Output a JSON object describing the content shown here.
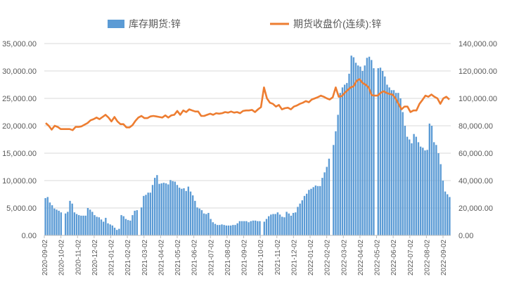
{
  "chart_data": {
    "type": "bar+line",
    "legend_position": "top",
    "grid": true,
    "x_tick_labels": [
      "2020-09-02",
      "2020-10-02",
      "2020-11-02",
      "2020-12-02",
      "2021-01-02",
      "2021-02-02",
      "2021-03-02",
      "2021-04-02",
      "2021-05-02",
      "2021-06-02",
      "2021-07-02",
      "2021-08-02",
      "2021-09-02",
      "2021-10-02",
      "2021-11-02",
      "2021-12-02",
      "2022-01-02",
      "2022-02-02",
      "2022-03-02",
      "2022-04-02",
      "2022-05-02",
      "2022-06-02",
      "2022-07-02",
      "2022-08-02",
      "2022-09-02"
    ],
    "left_axis": {
      "ylim": [
        0,
        35000
      ],
      "ticks": [
        "0.00",
        "5,000.00",
        "10,000.00",
        "15,000.00",
        "20,000.00",
        "25,000.00",
        "30,000.00",
        "35,000.00"
      ]
    },
    "right_axis": {
      "ylim": [
        0,
        140000
      ],
      "ticks": [
        "0.00",
        "20,000.00",
        "40,000.00",
        "60,000.00",
        "80,000.00",
        "100,000.00",
        "120,000.00",
        "140,000.00"
      ]
    },
    "series": [
      {
        "name": "库存期货:锌",
        "type": "bar",
        "axis": "right",
        "color": "#5b9bd5",
        "values": [
          27200,
          28000,
          24000,
          22000,
          19600,
          18800,
          18000,
          16800,
          null,
          16000,
          17200,
          25200,
          23200,
          16800,
          15600,
          14800,
          14400,
          14400,
          14400,
          20000,
          18800,
          17200,
          14800,
          13600,
          13200,
          11600,
          10000,
          12800,
          8800,
          8000,
          7200,
          5600,
          4000,
          4800,
          14800,
          14000,
          12000,
          11200,
          10800,
          14800,
          18000,
          18400,
          null,
          20400,
          28800,
          29600,
          31200,
          31200,
          36800,
          42000,
          44000,
          37600,
          38000,
          38400,
          38000,
          37200,
          40400,
          39600,
          39200,
          36800,
          34800,
          34000,
          34400,
          32400,
          35600,
          32000,
          29200,
          25200,
          20400,
          19600,
          18400,
          16000,
          15600,
          16400,
          12000,
          9600,
          8400,
          7600,
          7600,
          8000,
          7600,
          7200,
          7200,
          7200,
          7600,
          7600,
          8800,
          10400,
          10400,
          10400,
          10400,
          9600,
          10400,
          10800,
          10800,
          10400,
          10400,
          null,
          10000,
          12000,
          14000,
          15200,
          15600,
          15600,
          16800,
          15200,
          13600,
          13200,
          17200,
          16000,
          14400,
          16400,
          16800,
          20800,
          23200,
          25600,
          28800,
          30400,
          33200,
          34000,
          35200,
          36400,
          36000,
          36000,
          42000,
          46000,
          50000,
          56000,
          null,
          66000,
          76000,
          88000,
          104000,
          108000,
          110000,
          111200,
          118000,
          131200,
          130000,
          126000,
          124000,
          123200,
          120000,
          124000,
          129600,
          130400,
          128000,
          122000,
          null,
          122000,
          122400,
          120000,
          116000,
          110000,
          108000,
          106000,
          106000,
          104000,
          104000,
          100000,
          90000,
          80000,
          72000,
          70000,
          67200,
          74000,
          72000,
          68000,
          64800,
          64000,
          62000,
          62400,
          81600,
          80000,
          68000,
          66000,
          60000,
          52000,
          40000,
          32000,
          30000,
          28000
        ]
      },
      {
        "name": "期货收盘价(连续):锌",
        "type": "line",
        "axis": "left",
        "color": "#ed7d31",
        "values": [
          20500,
          20000,
          19300,
          20000,
          19800,
          19400,
          19400,
          19400,
          19400,
          19200,
          19800,
          19800,
          19900,
          20200,
          20500,
          21000,
          21200,
          21500,
          21200,
          21600,
          22000,
          21500,
          20800,
          21600,
          20800,
          20300,
          20300,
          19700,
          19700,
          20100,
          20900,
          21500,
          21800,
          21400,
          21400,
          21700,
          21800,
          21700,
          21600,
          21500,
          21900,
          21500,
          21900,
          22000,
          22700,
          22000,
          22800,
          22500,
          23000,
          22800,
          22600,
          22600,
          21800,
          21800,
          22000,
          22200,
          22000,
          22300,
          22200,
          22300,
          22500,
          22400,
          22600,
          22400,
          22500,
          22300,
          22700,
          22800,
          22800,
          22900,
          22500,
          23000,
          23400,
          27000,
          25000,
          24200,
          24000,
          23500,
          23800,
          23000,
          23200,
          23300,
          23000,
          23500,
          23700,
          24000,
          24200,
          24500,
          24300,
          24800,
          25000,
          25200,
          25500,
          25300,
          25000,
          24800,
          25200,
          27000,
          25300,
          25400,
          26000,
          26500,
          27000,
          27200,
          28200,
          28500,
          27800,
          27500,
          27000,
          25600,
          25500,
          25500,
          26000,
          26300,
          26000,
          25800,
          25700,
          25000,
          24000,
          23000,
          23500,
          23500,
          22500,
          22800,
          22800,
          24000,
          24700,
          25500,
          25300,
          25700,
          25300,
          25000,
          24000,
          25000,
          25300,
          24800
        ]
      }
    ]
  }
}
